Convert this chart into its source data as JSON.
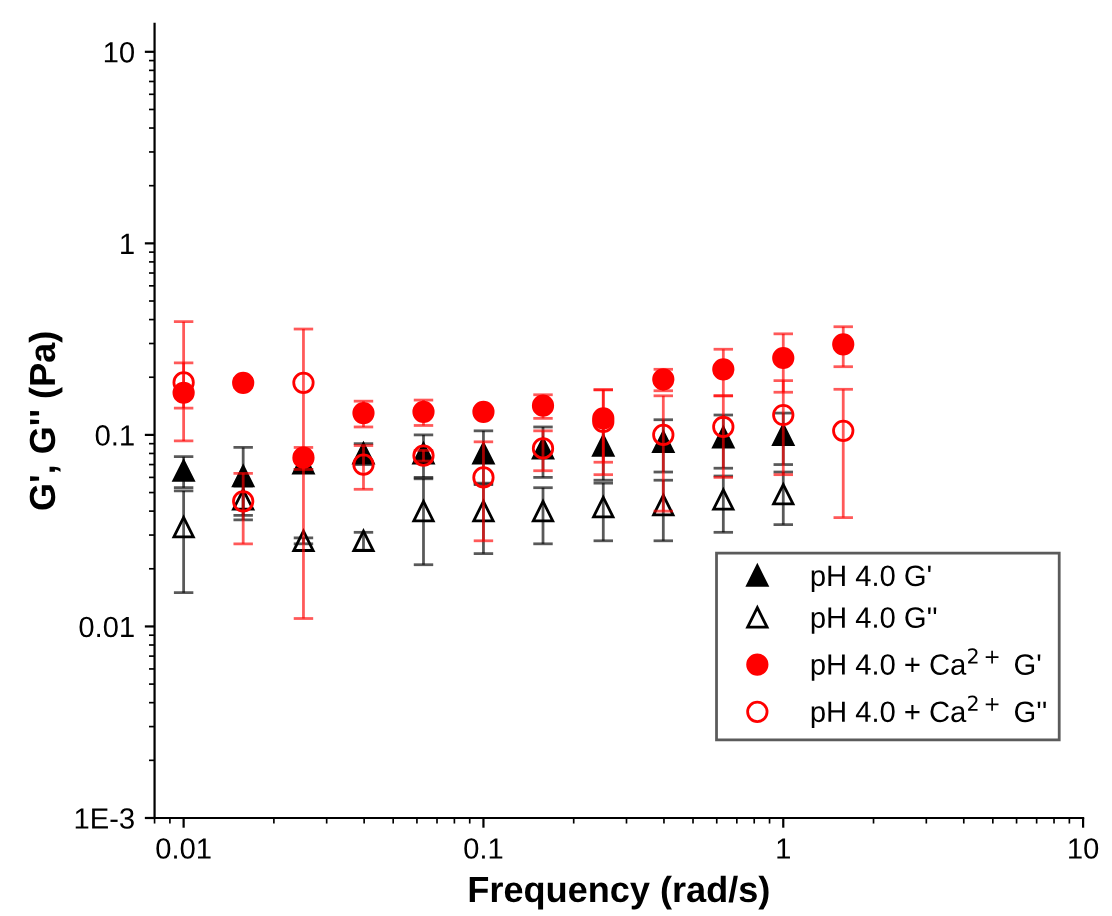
{
  "chart_data": {
    "type": "scatter",
    "xlabel": "Frequency (rad/s)",
    "ylabel": "G', G'' (Pa)",
    "log": "xy",
    "grid": false,
    "legend": "bottom right",
    "xlim": [
      0.008,
      10
    ],
    "xticks": [
      0.01,
      0.1,
      1,
      10
    ],
    "ylim": [
      0.001,
      14
    ],
    "yticks": [
      {
        "value": 0.001,
        "label": "1E-3"
      },
      0.01,
      0.1,
      1,
      10
    ],
    "x": [
      0.01,
      0.0158,
      0.0251,
      0.0398,
      0.0631,
      0.1,
      0.158,
      0.251,
      0.398,
      0.631,
      1,
      1.585
    ],
    "series": [
      {
        "name": "pH 4.0 G'",
        "color": "#000000",
        "marker": "triangle",
        "values": [
          0.065,
          0.061,
          0.071,
          0.08,
          0.08,
          0.08,
          0.085,
          0.088,
          0.092,
          0.097,
          0.1,
          null
        ],
        "errors": [
          0.012,
          0.025,
          0.005,
          0.01,
          0.02,
          0.025,
          0.025,
          0.03,
          0.028,
          0.03,
          0.03,
          null
        ]
      },
      {
        "name": "pH 4.0 G''",
        "color": "#000000",
        "marker": "triangle",
        "values": [
          0.033,
          0.046,
          0.028,
          0.028,
          0.04,
          0.04,
          0.04,
          0.042,
          0.043,
          0.046,
          0.049,
          null
        ],
        "errors": [
          0.018,
          0.008,
          0.001,
          0.003,
          0.019,
          0.016,
          0.013,
          0.014,
          0.015,
          0.015,
          0.015,
          null
        ]
      },
      {
        "name": "pH 4.0 + Ca$^{2+}$ G'",
        "color": "#ff0000",
        "marker": "circle",
        "values": [
          0.166,
          0.187,
          0.076,
          0.13,
          0.132,
          0.132,
          0.142,
          0.122,
          0.195,
          0.22,
          0.252,
          0.297
        ],
        "errors": [
          [
            0.093,
            0.39
          ],
          0.01,
          0.01,
          0.02,
          0.02,
          0.005,
          0.02,
          0.05,
          0.025,
          0.06,
          0.085,
          0.07
        ]
      },
      {
        "name": "pH 4.0 + Ca$^{2+}$ G''",
        "color": "#ff0000",
        "marker": "circle",
        "values": [
          0.188,
          0.045,
          0.187,
          0.07,
          0.078,
          0.06,
          0.085,
          0.117,
          0.1,
          0.11,
          0.127,
          0.105
        ],
        "errors": [
          0.05,
          0.018,
          [
            0.011,
            0.357
          ],
          0.018,
          0.005,
          0.032,
          0.02,
          0.055,
          0.06,
          0.05,
          0.065,
          0.068
        ]
      }
    ]
  }
}
